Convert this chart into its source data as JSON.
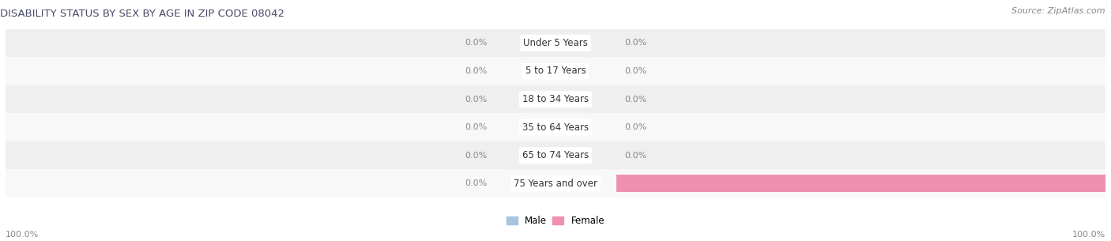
{
  "title": "DISABILITY STATUS BY SEX BY AGE IN ZIP CODE 08042",
  "source": "Source: ZipAtlas.com",
  "categories": [
    "Under 5 Years",
    "5 to 17 Years",
    "18 to 34 Years",
    "35 to 64 Years",
    "65 to 74 Years",
    "75 Years and over"
  ],
  "male_values": [
    0.0,
    0.0,
    0.0,
    0.0,
    0.0,
    0.0
  ],
  "female_values": [
    0.0,
    0.0,
    0.0,
    0.0,
    0.0,
    100.0
  ],
  "male_color": "#a8c4e0",
  "female_color": "#f090b0",
  "row_bg_color": "#efefef",
  "row_bg_alt": "#f8f8f8",
  "title_color": "#4a4a6a",
  "label_color": "#888888",
  "value_color": "#888888",
  "center_label_color": "#333333",
  "bar_height": 0.62,
  "figsize": [
    14.06,
    3.05
  ],
  "dpi": 100,
  "legend_male": "Male",
  "legend_female": "Female",
  "bottom_left_label": "100.0%",
  "bottom_right_label": "100.0%"
}
